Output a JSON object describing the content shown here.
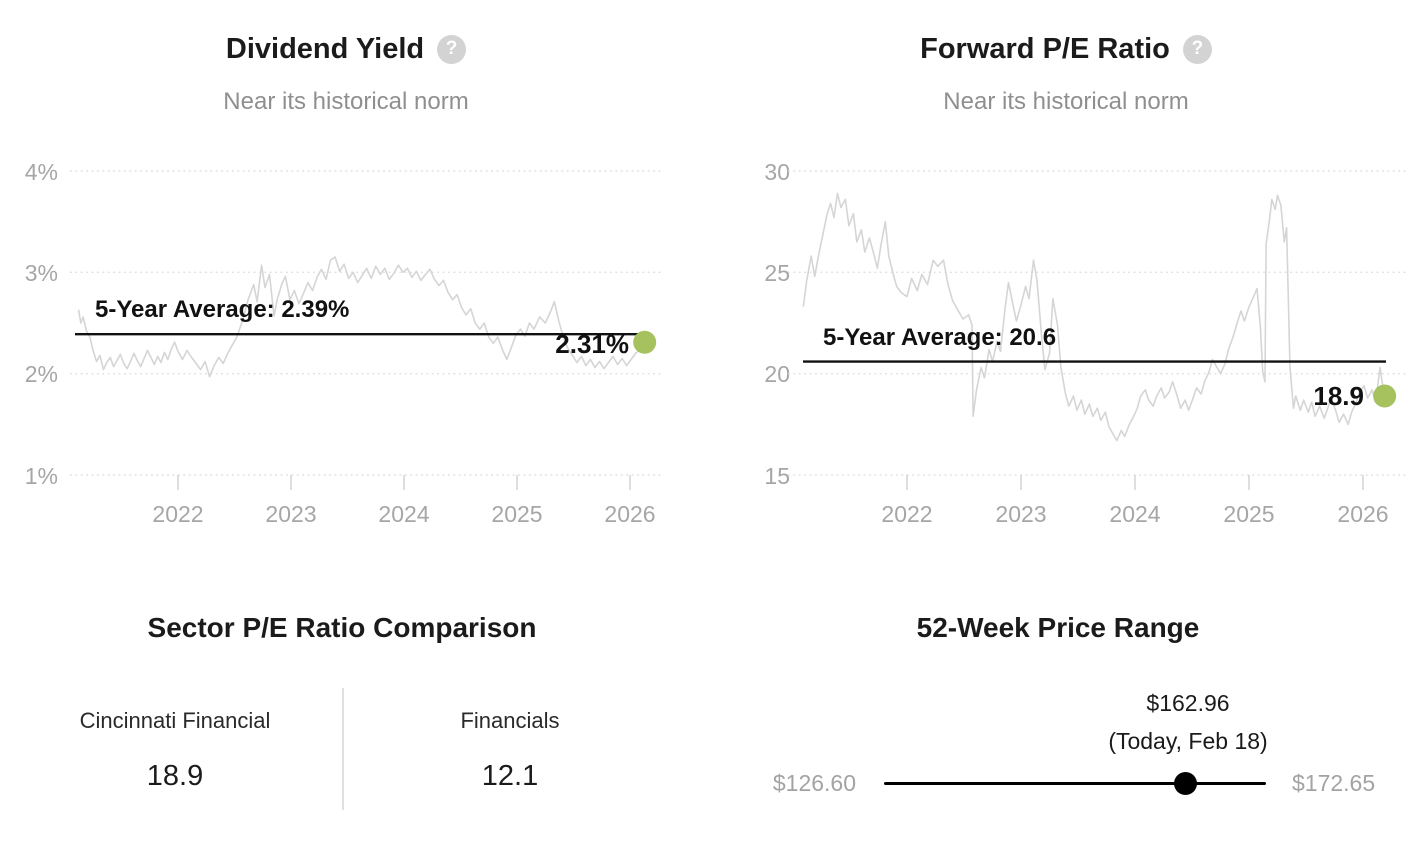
{
  "colors": {
    "accent_green": "#a5c25f",
    "series_line": "#d5d5d5",
    "grid_line": "#dedede",
    "tick_mark": "#d2d2d2",
    "average_line": "#111111"
  },
  "icons": {
    "help_glyph": "?"
  },
  "chart_data": [
    {
      "type": "line",
      "title": "Dividend Yield",
      "subtitle": "Near its historical norm",
      "average_label": "5-Year Average: 2.39%",
      "average_value": 2.39,
      "current_label": "2.31%",
      "current_value": 2.31,
      "y_ticks": [
        "4%",
        "3%",
        "2%",
        "1%"
      ],
      "y_tick_values": [
        4,
        3,
        2,
        1
      ],
      "x_ticks": [
        "2022",
        "2023",
        "2024",
        "2025",
        "2026"
      ],
      "x_tick_values": [
        2022,
        2023,
        2024,
        2025,
        2026
      ],
      "ylim": [
        0.9,
        4.1
      ],
      "legend_position": "none",
      "grid": "dotted-horizontal",
      "series": [
        [
          2021.12,
          2.63
        ],
        [
          2021.14,
          2.5
        ],
        [
          2021.16,
          2.56
        ],
        [
          2021.19,
          2.42
        ],
        [
          2021.22,
          2.36
        ],
        [
          2021.25,
          2.22
        ],
        [
          2021.28,
          2.12
        ],
        [
          2021.31,
          2.18
        ],
        [
          2021.34,
          2.04
        ],
        [
          2021.37,
          2.11
        ],
        [
          2021.4,
          2.16
        ],
        [
          2021.43,
          2.07
        ],
        [
          2021.46,
          2.13
        ],
        [
          2021.49,
          2.19
        ],
        [
          2021.52,
          2.1
        ],
        [
          2021.55,
          2.05
        ],
        [
          2021.58,
          2.12
        ],
        [
          2021.61,
          2.2
        ],
        [
          2021.64,
          2.13
        ],
        [
          2021.67,
          2.07
        ],
        [
          2021.7,
          2.15
        ],
        [
          2021.73,
          2.23
        ],
        [
          2021.76,
          2.16
        ],
        [
          2021.79,
          2.09
        ],
        [
          2021.82,
          2.17
        ],
        [
          2021.85,
          2.11
        ],
        [
          2021.88,
          2.21
        ],
        [
          2021.91,
          2.14
        ],
        [
          2021.94,
          2.24
        ],
        [
          2021.97,
          2.31
        ],
        [
          2022.0,
          2.22
        ],
        [
          2022.04,
          2.14
        ],
        [
          2022.08,
          2.23
        ],
        [
          2022.12,
          2.16
        ],
        [
          2022.16,
          2.1
        ],
        [
          2022.2,
          2.04
        ],
        [
          2022.24,
          2.12
        ],
        [
          2022.28,
          1.97
        ],
        [
          2022.32,
          2.08
        ],
        [
          2022.36,
          2.16
        ],
        [
          2022.4,
          2.1
        ],
        [
          2022.44,
          2.2
        ],
        [
          2022.48,
          2.28
        ],
        [
          2022.52,
          2.36
        ],
        [
          2022.57,
          2.52
        ],
        [
          2022.62,
          2.73
        ],
        [
          2022.67,
          2.88
        ],
        [
          2022.7,
          2.71
        ],
        [
          2022.74,
          3.07
        ],
        [
          2022.77,
          2.85
        ],
        [
          2022.81,
          2.98
        ],
        [
          2022.85,
          2.57
        ],
        [
          2022.88,
          2.74
        ],
        [
          2022.92,
          2.89
        ],
        [
          2022.95,
          2.96
        ],
        [
          2022.99,
          2.73
        ],
        [
          2023.03,
          2.82
        ],
        [
          2023.07,
          2.69
        ],
        [
          2023.11,
          2.79
        ],
        [
          2023.15,
          2.9
        ],
        [
          2023.19,
          2.82
        ],
        [
          2023.23,
          2.95
        ],
        [
          2023.27,
          3.03
        ],
        [
          2023.31,
          2.93
        ],
        [
          2023.35,
          3.12
        ],
        [
          2023.39,
          3.15
        ],
        [
          2023.43,
          3.01
        ],
        [
          2023.47,
          3.08
        ],
        [
          2023.51,
          2.94
        ],
        [
          2023.55,
          3.0
        ],
        [
          2023.59,
          2.9
        ],
        [
          2023.63,
          2.97
        ],
        [
          2023.67,
          3.04
        ],
        [
          2023.71,
          2.94
        ],
        [
          2023.75,
          3.06
        ],
        [
          2023.79,
          2.98
        ],
        [
          2023.83,
          3.04
        ],
        [
          2023.87,
          2.93
        ],
        [
          2023.91,
          2.99
        ],
        [
          2023.95,
          3.07
        ],
        [
          2023.99,
          3.0
        ],
        [
          2024.03,
          3.04
        ],
        [
          2024.07,
          2.95
        ],
        [
          2024.11,
          3.01
        ],
        [
          2024.15,
          2.92
        ],
        [
          2024.19,
          2.98
        ],
        [
          2024.23,
          3.03
        ],
        [
          2024.27,
          2.93
        ],
        [
          2024.31,
          2.87
        ],
        [
          2024.35,
          2.92
        ],
        [
          2024.39,
          2.8
        ],
        [
          2024.43,
          2.73
        ],
        [
          2024.47,
          2.78
        ],
        [
          2024.51,
          2.65
        ],
        [
          2024.55,
          2.58
        ],
        [
          2024.59,
          2.64
        ],
        [
          2024.63,
          2.5
        ],
        [
          2024.67,
          2.44
        ],
        [
          2024.71,
          2.5
        ],
        [
          2024.75,
          2.36
        ],
        [
          2024.79,
          2.3
        ],
        [
          2024.83,
          2.36
        ],
        [
          2024.87,
          2.24
        ],
        [
          2024.91,
          2.14
        ],
        [
          2024.95,
          2.26
        ],
        [
          2024.99,
          2.38
        ],
        [
          2025.03,
          2.44
        ],
        [
          2025.07,
          2.37
        ],
        [
          2025.11,
          2.5
        ],
        [
          2025.15,
          2.44
        ],
        [
          2025.2,
          2.56
        ],
        [
          2025.25,
          2.5
        ],
        [
          2025.3,
          2.62
        ],
        [
          2025.33,
          2.71
        ],
        [
          2025.37,
          2.52
        ],
        [
          2025.41,
          2.36
        ],
        [
          2025.45,
          2.25
        ],
        [
          2025.49,
          2.18
        ],
        [
          2025.53,
          2.11
        ],
        [
          2025.57,
          2.17
        ],
        [
          2025.61,
          2.08
        ],
        [
          2025.65,
          2.14
        ],
        [
          2025.69,
          2.06
        ],
        [
          2025.73,
          2.12
        ],
        [
          2025.77,
          2.05
        ],
        [
          2025.81,
          2.11
        ],
        [
          2025.85,
          2.17
        ],
        [
          2025.89,
          2.09
        ],
        [
          2025.93,
          2.15
        ],
        [
          2025.97,
          2.08
        ],
        [
          2026.01,
          2.14
        ],
        [
          2026.05,
          2.2
        ],
        [
          2026.09,
          2.24
        ],
        [
          2026.13,
          2.31
        ]
      ]
    },
    {
      "type": "line",
      "title": "Forward P/E Ratio",
      "subtitle": "Near its historical norm",
      "average_label": "5-Year Average: 20.6",
      "average_value": 20.6,
      "current_label": "18.9",
      "current_value": 18.9,
      "y_ticks": [
        "30",
        "25",
        "20",
        "15"
      ],
      "y_tick_values": [
        30,
        25,
        20,
        15
      ],
      "x_ticks": [
        "2022",
        "2023",
        "2024",
        "2025",
        "2026"
      ],
      "x_tick_values": [
        2022,
        2023,
        2024,
        2025,
        2026
      ],
      "ylim": [
        14.5,
        30.5
      ],
      "legend_position": "none",
      "grid": "dotted-horizontal",
      "series": [
        [
          2021.09,
          23.3
        ],
        [
          2021.12,
          24.6
        ],
        [
          2021.16,
          25.8
        ],
        [
          2021.19,
          24.8
        ],
        [
          2021.23,
          26.0
        ],
        [
          2021.26,
          26.8
        ],
        [
          2021.3,
          27.9
        ],
        [
          2021.33,
          28.4
        ],
        [
          2021.36,
          27.7
        ],
        [
          2021.39,
          28.9
        ],
        [
          2021.42,
          28.2
        ],
        [
          2021.46,
          28.6
        ],
        [
          2021.49,
          27.3
        ],
        [
          2021.53,
          27.9
        ],
        [
          2021.56,
          26.5
        ],
        [
          2021.6,
          27.1
        ],
        [
          2021.63,
          26.0
        ],
        [
          2021.67,
          26.7
        ],
        [
          2021.7,
          26.1
        ],
        [
          2021.74,
          25.2
        ],
        [
          2021.77,
          26.3
        ],
        [
          2021.81,
          27.5
        ],
        [
          2021.84,
          25.8
        ],
        [
          2021.88,
          24.9
        ],
        [
          2021.91,
          24.3
        ],
        [
          2021.95,
          24.0
        ],
        [
          2022.0,
          23.8
        ],
        [
          2022.04,
          24.7
        ],
        [
          2022.09,
          24.1
        ],
        [
          2022.13,
          24.9
        ],
        [
          2022.18,
          24.4
        ],
        [
          2022.23,
          25.6
        ],
        [
          2022.27,
          25.3
        ],
        [
          2022.32,
          25.6
        ],
        [
          2022.36,
          24.4
        ],
        [
          2022.4,
          23.6
        ],
        [
          2022.45,
          23.1
        ],
        [
          2022.49,
          22.7
        ],
        [
          2022.54,
          22.9
        ],
        [
          2022.57,
          22.4
        ],
        [
          2022.58,
          17.9
        ],
        [
          2022.61,
          19.2
        ],
        [
          2022.65,
          20.3
        ],
        [
          2022.68,
          19.8
        ],
        [
          2022.72,
          21.2
        ],
        [
          2022.75,
          20.6
        ],
        [
          2022.79,
          21.6
        ],
        [
          2022.82,
          21.1
        ],
        [
          2022.86,
          23.2
        ],
        [
          2022.89,
          24.5
        ],
        [
          2022.93,
          23.4
        ],
        [
          2022.96,
          22.6
        ],
        [
          2023.0,
          23.4
        ],
        [
          2023.04,
          24.3
        ],
        [
          2023.07,
          23.7
        ],
        [
          2023.11,
          25.6
        ],
        [
          2023.14,
          24.6
        ],
        [
          2023.18,
          21.9
        ],
        [
          2023.21,
          20.2
        ],
        [
          2023.25,
          21.0
        ],
        [
          2023.28,
          23.7
        ],
        [
          2023.32,
          22.4
        ],
        [
          2023.35,
          20.3
        ],
        [
          2023.39,
          19.0
        ],
        [
          2023.42,
          18.4
        ],
        [
          2023.46,
          18.9
        ],
        [
          2023.49,
          18.2
        ],
        [
          2023.53,
          18.7
        ],
        [
          2023.56,
          18.0
        ],
        [
          2023.6,
          18.5
        ],
        [
          2023.63,
          17.9
        ],
        [
          2023.67,
          18.3
        ],
        [
          2023.7,
          17.7
        ],
        [
          2023.74,
          18.1
        ],
        [
          2023.77,
          17.4
        ],
        [
          2023.81,
          17.0
        ],
        [
          2023.84,
          16.7
        ],
        [
          2023.88,
          17.2
        ],
        [
          2023.91,
          16.9
        ],
        [
          2023.95,
          17.5
        ],
        [
          2023.98,
          17.8
        ],
        [
          2024.02,
          18.3
        ],
        [
          2024.05,
          18.9
        ],
        [
          2024.09,
          19.2
        ],
        [
          2024.12,
          18.7
        ],
        [
          2024.16,
          18.4
        ],
        [
          2024.19,
          18.9
        ],
        [
          2024.23,
          19.3
        ],
        [
          2024.26,
          18.8
        ],
        [
          2024.3,
          19.1
        ],
        [
          2024.33,
          19.6
        ],
        [
          2024.37,
          18.9
        ],
        [
          2024.4,
          18.3
        ],
        [
          2024.44,
          18.7
        ],
        [
          2024.47,
          18.2
        ],
        [
          2024.51,
          18.8
        ],
        [
          2024.54,
          19.3
        ],
        [
          2024.58,
          19.0
        ],
        [
          2024.61,
          19.6
        ],
        [
          2024.65,
          20.1
        ],
        [
          2024.68,
          20.7
        ],
        [
          2024.72,
          20.3
        ],
        [
          2024.75,
          20.0
        ],
        [
          2024.79,
          20.5
        ],
        [
          2024.82,
          21.2
        ],
        [
          2024.86,
          21.8
        ],
        [
          2024.89,
          22.4
        ],
        [
          2024.93,
          23.1
        ],
        [
          2024.96,
          22.6
        ],
        [
          2025.0,
          23.3
        ],
        [
          2025.04,
          23.8
        ],
        [
          2025.07,
          24.2
        ],
        [
          2025.1,
          22.3
        ],
        [
          2025.12,
          20.1
        ],
        [
          2025.14,
          19.6
        ],
        [
          2025.15,
          26.4
        ],
        [
          2025.18,
          27.6
        ],
        [
          2025.2,
          28.6
        ],
        [
          2025.23,
          28.1
        ],
        [
          2025.25,
          28.8
        ],
        [
          2025.28,
          28.3
        ],
        [
          2025.31,
          26.5
        ],
        [
          2025.33,
          27.2
        ],
        [
          2025.36,
          20.3
        ],
        [
          2025.39,
          18.3
        ],
        [
          2025.41,
          18.9
        ],
        [
          2025.45,
          18.2
        ],
        [
          2025.48,
          18.7
        ],
        [
          2025.52,
          18.1
        ],
        [
          2025.55,
          18.6
        ],
        [
          2025.58,
          17.9
        ],
        [
          2025.62,
          18.4
        ],
        [
          2025.66,
          17.8
        ],
        [
          2025.69,
          18.3
        ],
        [
          2025.72,
          18.8
        ],
        [
          2025.76,
          18.2
        ],
        [
          2025.79,
          17.6
        ],
        [
          2025.83,
          18.0
        ],
        [
          2025.87,
          17.5
        ],
        [
          2025.9,
          18.1
        ],
        [
          2025.94,
          18.6
        ],
        [
          2025.97,
          19.1
        ],
        [
          2026.01,
          19.4
        ],
        [
          2026.04,
          18.8
        ],
        [
          2026.08,
          19.2
        ],
        [
          2026.11,
          18.6
        ],
        [
          2026.15,
          20.3
        ],
        [
          2026.17,
          19.5
        ],
        [
          2026.19,
          18.9
        ]
      ]
    }
  ],
  "sector_comparison": {
    "title": "Sector P/E Ratio Comparison",
    "items": [
      {
        "label": "Cincinnati Financial",
        "value": "18.9"
      },
      {
        "label": "Financials",
        "value": "12.1"
      }
    ]
  },
  "price_range": {
    "title": "52-Week Price Range",
    "current_label": "$162.96",
    "current_sub_label": "(Today, Feb 18)",
    "low_label": "$126.60",
    "high_label": "$172.65",
    "low": 126.6,
    "high": 172.65,
    "current": 162.96
  }
}
